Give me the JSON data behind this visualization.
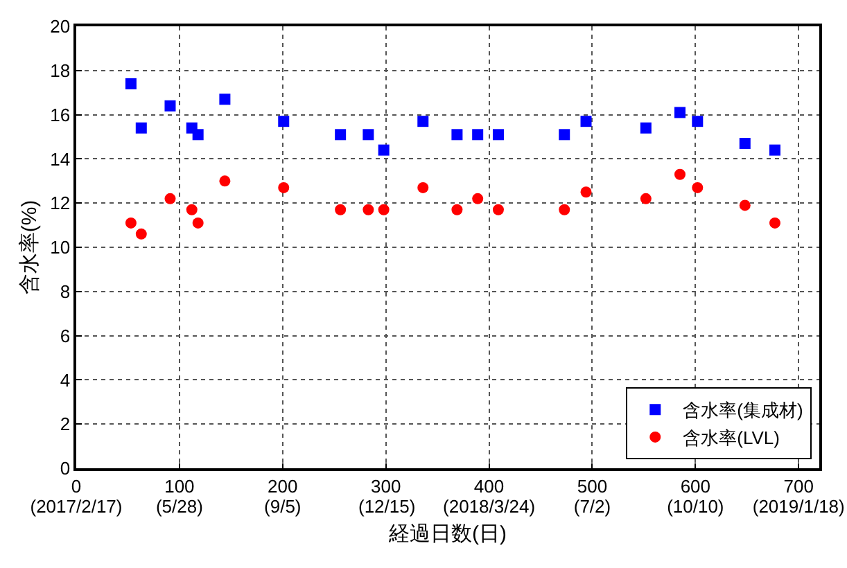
{
  "chart_data": {
    "type": "scatter",
    "xlabel": "経過日数(日)",
    "ylabel": "含水率(%)",
    "x": [
      53,
      63,
      91,
      112,
      118,
      144,
      201,
      256,
      283,
      298,
      336,
      369,
      389,
      409,
      473,
      494,
      552,
      585,
      602,
      648,
      677
    ],
    "series": [
      {
        "name": "含水率(集成材)",
        "color": "#0000ff",
        "marker": "square",
        "values": [
          17.4,
          15.4,
          16.4,
          15.4,
          15.1,
          16.7,
          15.7,
          15.1,
          15.1,
          14.4,
          15.7,
          15.1,
          15.1,
          15.1,
          15.1,
          15.7,
          15.4,
          16.1,
          15.7,
          14.7,
          14.4
        ]
      },
      {
        "name": "含水率(LVL)",
        "color": "#ff0000",
        "marker": "circle",
        "values": [
          11.1,
          10.6,
          12.2,
          11.7,
          11.1,
          13.0,
          12.7,
          11.7,
          11.7,
          11.7,
          12.7,
          11.7,
          12.2,
          11.7,
          11.7,
          12.5,
          12.2,
          13.3,
          12.7,
          11.9,
          11.1
        ]
      }
    ],
    "xlim": [
      0,
      720
    ],
    "ylim": [
      0,
      20
    ],
    "xticks": [
      0,
      100,
      200,
      300,
      400,
      500,
      600,
      700
    ],
    "x2lim": [
      "2017-02-17",
      "2019-02-07"
    ],
    "x2ticks": [
      {
        "value": "2017-02-17",
        "label": "(2017/2/17)"
      },
      {
        "value": "2017-05-28",
        "label": "(5/28)"
      },
      {
        "value": "2017-09-05",
        "label": "(9/5)"
      },
      {
        "value": "2017-12-15",
        "label": "(12/15)"
      },
      {
        "value": "2018-03-24",
        "label": "(2018/3/24)"
      },
      {
        "value": "2018-07-02",
        "label": "(7/2)"
      },
      {
        "value": "2018-10-10",
        "label": "(10/10)"
      },
      {
        "value": "2019-01-18",
        "label": "(2019/1/18)"
      }
    ],
    "yticks": [
      0,
      2,
      4,
      6,
      8,
      10,
      12,
      14,
      16,
      18,
      20
    ],
    "grid": true,
    "legend": "bottom right"
  }
}
